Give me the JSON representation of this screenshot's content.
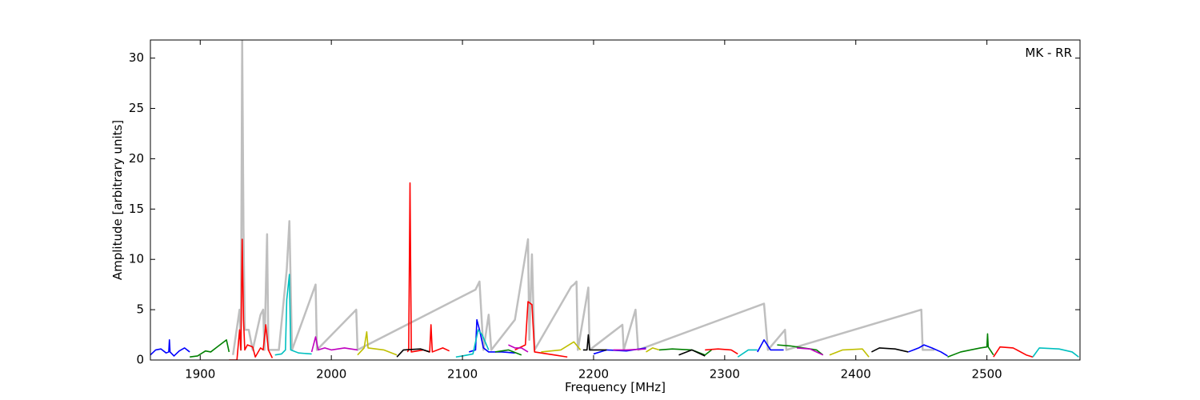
{
  "chart_data": {
    "type": "line",
    "annotation": "MK - RR",
    "xlabel": "Frequency [MHz]",
    "ylabel": "Amplitude [arbitrary units]",
    "xlim": [
      1862,
      2571
    ],
    "ylim": [
      0,
      31.8
    ],
    "xticks": [
      1900,
      2000,
      2100,
      2200,
      2300,
      2400,
      2500
    ],
    "yticks": [
      0,
      5,
      10,
      15,
      20,
      25,
      30
    ],
    "series": [
      {
        "color": "#bfbfbf",
        "x": [
          1925,
          1930,
          1931,
          1932,
          1933,
          1934,
          1937,
          1940,
          1946,
          1948,
          1949,
          1951,
          1952,
          1960,
          1966,
          1968,
          1970,
          1988,
          1989,
          2019,
          2020,
          2110,
          2113,
          2116,
          2120,
          2122,
          2140,
          2150,
          2151,
          2153,
          2155,
          2183,
          2185,
          2187,
          2188,
          2196,
          2197,
          2222,
          2223,
          2232,
          2234,
          2330,
          2333,
          2346,
          2347,
          2450,
          2451,
          2460
        ],
        "values": [
          0.5,
          5,
          1,
          31.8,
          13,
          3,
          3,
          1,
          4.5,
          5,
          1,
          12.5,
          1,
          1,
          9,
          13.8,
          1,
          7.5,
          1,
          5,
          1,
          7,
          7.8,
          1,
          4.5,
          1,
          4,
          12,
          2,
          10.5,
          1,
          7.3,
          7.5,
          7.8,
          1,
          7.2,
          1,
          3.5,
          1,
          5,
          1,
          5.6,
          1,
          3,
          1,
          5,
          1,
          1
        ]
      },
      {
        "color": "#0000ff",
        "x": [
          1862,
          1866,
          1870,
          1874,
          1876,
          1876.5,
          1877,
          1880,
          1884,
          1888,
          1892,
          null,
          2105,
          2110,
          2111,
          2113,
          2116,
          2120,
          2130,
          2140,
          null,
          2200,
          2210,
          2225,
          2240,
          null,
          2325,
          2330,
          2335,
          2345,
          null,
          2440,
          2448,
          2452,
          2458,
          2465,
          2470
        ],
        "values": [
          0.5,
          1.0,
          1.1,
          0.7,
          0.8,
          2.0,
          0.8,
          0.4,
          0.9,
          1.2,
          0.8,
          null,
          0.8,
          1.0,
          4.0,
          3.0,
          1.2,
          0.8,
          0.8,
          0.7,
          null,
          0.6,
          1.0,
          0.9,
          1.2,
          null,
          0.8,
          2.0,
          1.0,
          1.0,
          null,
          0.8,
          1.2,
          1.5,
          1.2,
          0.8,
          0.4
        ]
      },
      {
        "color": "#008000",
        "x": [
          1892,
          1898,
          1904,
          1908,
          1912,
          1916,
          1920,
          1922,
          null,
          2125,
          2135,
          2145,
          null,
          2250,
          2260,
          2275,
          2285,
          2290,
          null,
          2340,
          2350,
          2370,
          2375,
          null,
          2470,
          2480,
          2495,
          2500,
          2500.5,
          2501,
          2505
        ],
        "values": [
          0.3,
          0.4,
          0.9,
          0.8,
          1.2,
          1.6,
          2.0,
          0.8,
          null,
          0.8,
          1.0,
          0.5,
          null,
          1.0,
          1.1,
          1.0,
          0.5,
          1.0,
          null,
          1.5,
          1.4,
          1.0,
          0.5,
          null,
          0.3,
          0.8,
          1.2,
          1.3,
          2.6,
          1.3,
          0.5
        ]
      },
      {
        "color": "#ff0000",
        "x": [
          1922,
          1928,
          1930,
          1931,
          1932,
          1933,
          1934,
          1936,
          1940,
          1942,
          1946,
          1948,
          1950,
          1952,
          1955,
          null,
          2058,
          2059,
          2060,
          2061,
          2070,
          2075,
          2076,
          2077,
          2085,
          2090,
          null,
          2140,
          2148,
          2150,
          2153,
          2155,
          2170,
          2180,
          null,
          2285,
          2295,
          2305,
          2310,
          null,
          2505,
          2510,
          2520,
          2530,
          2535
        ],
        "values": [
          0,
          0,
          3.0,
          1.0,
          12.0,
          4.0,
          1.0,
          1.5,
          1.3,
          0.3,
          1.2,
          1.0,
          3.5,
          1.0,
          0.2,
          null,
          0.8,
          1.0,
          17.6,
          0.8,
          1.0,
          0.8,
          3.5,
          0.8,
          1.2,
          0.9,
          null,
          1.0,
          1.5,
          5.8,
          5.5,
          0.8,
          0.5,
          0.3,
          null,
          1.0,
          1.1,
          1.0,
          0.6,
          null,
          0.3,
          1.3,
          1.2,
          0.5,
          0.3
        ]
      },
      {
        "color": "#00bfbf",
        "x": [
          1957,
          1962,
          1965,
          1966,
          1968,
          1969,
          1975,
          1985,
          null,
          2095,
          2100,
          2108,
          2112,
          2115,
          2120,
          null,
          2310,
          2318,
          2325,
          null,
          2535,
          2540,
          2555,
          2565,
          2570
        ],
        "values": [
          0.5,
          0.6,
          1.0,
          6.0,
          8.5,
          1.0,
          0.7,
          0.6,
          null,
          0.3,
          0.4,
          0.6,
          3.0,
          2.5,
          1.0,
          null,
          0.3,
          1.0,
          1.0,
          null,
          0.3,
          1.2,
          1.1,
          0.8,
          0.3
        ]
      },
      {
        "color": "#bf00bf",
        "x": [
          1985,
          1988,
          1990,
          1995,
          2000,
          2010,
          2020,
          null,
          2135,
          2140,
          2145,
          2150,
          null,
          2215,
          2225,
          2240,
          null,
          2355,
          2365,
          2375
        ],
        "values": [
          0.8,
          2.3,
          1.0,
          1.2,
          1.0,
          1.2,
          1.0,
          null,
          1.5,
          1.2,
          1.2,
          0.8,
          null,
          1.0,
          1.0,
          1.1,
          null,
          1.2,
          1.1,
          0.5
        ]
      },
      {
        "color": "#bfbf00",
        "x": [
          2020,
          2025,
          2027,
          2028,
          2040,
          2050,
          null,
          2160,
          2175,
          2185,
          2190,
          null,
          2240,
          2245,
          2250,
          null,
          2380,
          2390,
          2405,
          2410
        ],
        "values": [
          0.5,
          1.2,
          2.8,
          1.2,
          1.0,
          0.5,
          null,
          0.8,
          1.0,
          1.8,
          1.0,
          null,
          0.8,
          1.2,
          1.0,
          null,
          0.5,
          1.0,
          1.1,
          0.3
        ]
      },
      {
        "color": "#000000",
        "x": [
          2050,
          2055,
          2068,
          2075,
          null,
          2192,
          2195,
          2196,
          2197,
          2210,
          null,
          2265,
          2275,
          2285,
          null,
          2412,
          2418,
          2430,
          2440
        ],
        "values": [
          0.3,
          1.0,
          1.1,
          0.8,
          null,
          1.0,
          1.0,
          2.5,
          1.0,
          1.0,
          null,
          0.5,
          1.0,
          0.4,
          null,
          0.8,
          1.2,
          1.1,
          0.8
        ]
      }
    ]
  }
}
